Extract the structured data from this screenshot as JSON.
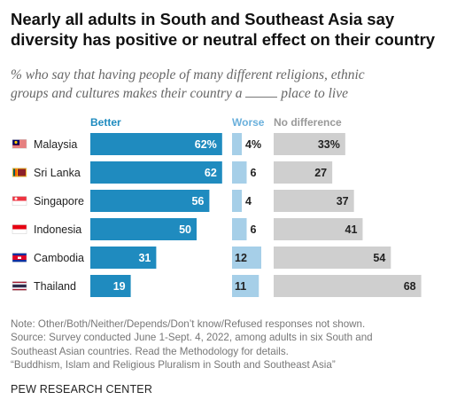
{
  "header": {
    "title_line1": "Nearly all adults in South and Southeast Asia say",
    "title_line2": "diversity has positive or neutral effect on their country",
    "subtitle_line1": "% who say that having people of many different religions, ethnic",
    "subtitle_line2_before": "groups and cultures makes their country a",
    "subtitle_line2_after": "place to live"
  },
  "chart_data": {
    "type": "bar",
    "categories": [
      "Malaysia",
      "Sri Lanka",
      "Singapore",
      "Indonesia",
      "Cambodia",
      "Thailand"
    ],
    "series": [
      {
        "name": "Better",
        "values": [
          62,
          62,
          56,
          50,
          31,
          19
        ],
        "labels": [
          "62%",
          "62",
          "56",
          "50",
          "31",
          "19"
        ],
        "color": "#1f8bbf"
      },
      {
        "name": "Worse",
        "values": [
          4,
          6,
          4,
          6,
          12,
          11
        ],
        "labels": [
          "4%",
          "6",
          "4",
          "6",
          "12",
          "11"
        ],
        "color": "#a6cfe8"
      },
      {
        "name": "No difference",
        "values": [
          33,
          27,
          37,
          41,
          54,
          68
        ],
        "labels": [
          "33%",
          "27",
          "37",
          "41",
          "54",
          "68"
        ],
        "color": "#cfcfcf"
      }
    ],
    "flag_icons": [
      "malaysia-flag-icon",
      "sri-lanka-flag-icon",
      "singapore-flag-icon",
      "indonesia-flag-icon",
      "cambodia-flag-icon",
      "thailand-flag-icon"
    ],
    "stacked": false,
    "grid": false,
    "legend": "top"
  },
  "notes": {
    "line1": "Note: Other/Both/Neither/Depends/Don’t know/Refused responses not shown.",
    "line2": "Source: Survey conducted June 1-Sept. 4, 2022, among adults in six South and",
    "line3": "Southeast Asian countries. Read the Methodology for details.",
    "line4": "“Buddhism, Islam and Religious Pluralism in South and Southeast Asia”"
  },
  "source_org": "PEW RESEARCH CENTER"
}
